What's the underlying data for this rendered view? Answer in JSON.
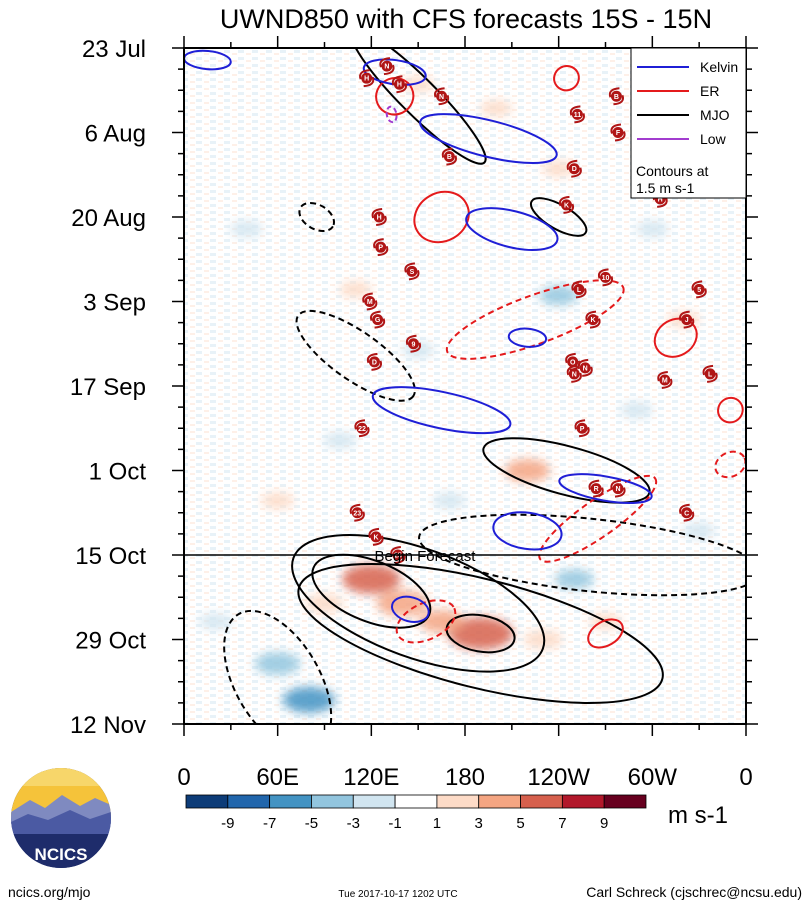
{
  "chart_data": {
    "type": "heatmap",
    "title": "UWND850 with CFS forecasts  15S - 15N",
    "x_axis": {
      "ticks": [
        {
          "lon": 0,
          "label": "0"
        },
        {
          "lon": 60,
          "label": "60E"
        },
        {
          "lon": 120,
          "label": "120E"
        },
        {
          "lon": 180,
          "label": "180"
        },
        {
          "lon": 240,
          "label": "120W"
        },
        {
          "lon": 300,
          "label": "60W"
        },
        {
          "lon": 360,
          "label": "0"
        }
      ],
      "range": [
        0,
        360
      ]
    },
    "y_axis": {
      "start_date": "23 Jul",
      "range_days": [
        0,
        112
      ],
      "ticks": [
        {
          "day": 0,
          "label": "23 Jul"
        },
        {
          "day": 14,
          "label": "6 Aug"
        },
        {
          "day": 28,
          "label": "20 Aug"
        },
        {
          "day": 42,
          "label": "3 Sep"
        },
        {
          "day": 56,
          "label": "17 Sep"
        },
        {
          "day": 70,
          "label": "1 Oct"
        },
        {
          "day": 84,
          "label": "15 Oct"
        },
        {
          "day": 98,
          "label": "29 Oct"
        },
        {
          "day": 112,
          "label": "12 Nov"
        }
      ]
    },
    "forecast_start": {
      "day": 84,
      "label": "Begin Forecast"
    },
    "legend": {
      "position": "top-right",
      "entries": [
        {
          "name": "Kelvin",
          "color": "#1f1fd6"
        },
        {
          "name": "ER",
          "color": "#e41a1c"
        },
        {
          "name": "MJO",
          "color": "#000000"
        },
        {
          "name": "Low",
          "color": "#a23ccf"
        }
      ],
      "note_line1": "Contours at",
      "note_line2": "1.5 m s-1"
    },
    "colorbar": {
      "unit": "m s-1",
      "labels": [
        "-9",
        "-7",
        "-5",
        "-3",
        "-1",
        "1",
        "3",
        "5",
        "7",
        "9"
      ],
      "colors": [
        "#0d3c78",
        "#2166ac",
        "#4393c3",
        "#92c5de",
        "#d1e5f0",
        "#ffffff",
        "#fddbc7",
        "#f4a582",
        "#d6604d",
        "#b2182b",
        "#67001f"
      ]
    },
    "wind_anomaly_blobs": [
      {
        "lon": 120,
        "day": 88,
        "value": 6
      },
      {
        "lon": 190,
        "day": 97,
        "value": 7
      },
      {
        "lon": 140,
        "day": 92,
        "value": 5
      },
      {
        "lon": 165,
        "day": 95,
        "value": 4
      },
      {
        "lon": 90,
        "day": 92,
        "value": 3
      },
      {
        "lon": 230,
        "day": 98,
        "value": 3
      },
      {
        "lon": 270,
        "day": 95,
        "value": 2
      },
      {
        "lon": 220,
        "day": 70,
        "value": 4
      },
      {
        "lon": 150,
        "day": 6,
        "value": 2
      },
      {
        "lon": 240,
        "day": 20,
        "value": 2
      },
      {
        "lon": 60,
        "day": 102,
        "value": -4
      },
      {
        "lon": 80,
        "day": 108,
        "value": -5
      },
      {
        "lon": 20,
        "day": 95,
        "value": -2
      },
      {
        "lon": 250,
        "day": 88,
        "value": -3
      },
      {
        "lon": 240,
        "day": 41,
        "value": -3
      },
      {
        "lon": 150,
        "day": 50,
        "value": -2
      },
      {
        "lon": 290,
        "day": 60,
        "value": -2
      },
      {
        "lon": 100,
        "day": 65,
        "value": -2
      },
      {
        "lon": 40,
        "day": 30,
        "value": -2
      },
      {
        "lon": 300,
        "day": 30,
        "value": -2
      },
      {
        "lon": 170,
        "day": 75,
        "value": -2
      },
      {
        "lon": 330,
        "day": 80,
        "value": -2
      },
      {
        "lon": 200,
        "day": 10,
        "value": 2
      },
      {
        "lon": 320,
        "day": 45,
        "value": 2
      },
      {
        "lon": 110,
        "day": 40,
        "value": 2
      },
      {
        "lon": 60,
        "day": 75,
        "value": 2
      }
    ],
    "kelvin_contours": [
      {
        "lon": 220,
        "day": 80,
        "rx": 22,
        "ry": 3,
        "angle": 8
      },
      {
        "lon": 165,
        "day": 60,
        "rx": 45,
        "ry": 3,
        "angle": 12
      },
      {
        "lon": 210,
        "day": 30,
        "rx": 30,
        "ry": 3,
        "angle": 14
      },
      {
        "lon": 195,
        "day": 15,
        "rx": 45,
        "ry": 3,
        "angle": 14
      },
      {
        "lon": 135,
        "day": 4,
        "rx": 20,
        "ry": 2,
        "angle": 8
      },
      {
        "lon": 15,
        "day": 2,
        "rx": 15,
        "ry": 1.5,
        "angle": 5
      },
      {
        "lon": 145,
        "day": 93,
        "rx": 12,
        "ry": 2,
        "angle": 15
      },
      {
        "lon": 270,
        "day": 73,
        "rx": 30,
        "ry": 2,
        "angle": 10
      },
      {
        "lon": 220,
        "day": 48,
        "rx": 12,
        "ry": 1.5,
        "angle": 5
      }
    ],
    "er_contours": [
      {
        "lon": 165,
        "day": 28,
        "rx": 18,
        "ry": 4,
        "angle": -30,
        "dashed": false
      },
      {
        "lon": 135,
        "day": 8,
        "rx": 12,
        "ry": 3,
        "angle": -25,
        "dashed": false
      },
      {
        "lon": 265,
        "day": 78,
        "rx": 45,
        "ry": 3,
        "angle": -35,
        "dashed": true
      },
      {
        "lon": 225,
        "day": 45,
        "rx": 60,
        "ry": 4,
        "angle": -20,
        "dashed": true
      },
      {
        "lon": 155,
        "day": 95,
        "rx": 20,
        "ry": 3,
        "angle": -25,
        "dashed": true
      },
      {
        "lon": 270,
        "day": 97,
        "rx": 12,
        "ry": 2,
        "angle": -30,
        "dashed": false
      },
      {
        "lon": 315,
        "day": 48,
        "rx": 14,
        "ry": 3,
        "angle": -30,
        "dashed": false
      },
      {
        "lon": 350,
        "day": 69,
        "rx": 10,
        "ry": 2,
        "angle": -25,
        "dashed": true
      },
      {
        "lon": 350,
        "day": 60,
        "rx": 8,
        "ry": 2,
        "angle": -40,
        "dashed": false
      },
      {
        "lon": 245,
        "day": 5,
        "rx": 8,
        "ry": 2,
        "angle": -30,
        "dashed": false
      }
    ],
    "mjo_contours": [
      {
        "lon": 190,
        "day": 97,
        "rx": 120,
        "ry": 9,
        "angle": 14,
        "dashed": false
      },
      {
        "lon": 150,
        "day": 92,
        "rx": 85,
        "ry": 9,
        "angle": 20,
        "dashed": false
      },
      {
        "lon": 120,
        "day": 90,
        "rx": 40,
        "ry": 5,
        "angle": 22,
        "dashed": false
      },
      {
        "lon": 190,
        "day": 97,
        "rx": 22,
        "ry": 3,
        "angle": 10,
        "dashed": false
      },
      {
        "lon": 245,
        "day": 70,
        "rx": 55,
        "ry": 4,
        "angle": 15,
        "dashed": false
      },
      {
        "lon": 150,
        "day": 8,
        "rx": 60,
        "ry": 3,
        "angle": 45,
        "dashed": false
      },
      {
        "lon": 240,
        "day": 28,
        "rx": 20,
        "ry": 2,
        "angle": 30,
        "dashed": false
      },
      {
        "lon": 60,
        "day": 105,
        "rx": 50,
        "ry": 7,
        "angle": 60,
        "dashed": true
      },
      {
        "lon": 110,
        "day": 51,
        "rx": 45,
        "ry": 4,
        "angle": 35,
        "dashed": true
      },
      {
        "lon": 260,
        "day": 84,
        "rx": 110,
        "ry": 6,
        "angle": 6,
        "dashed": true
      },
      {
        "lon": 85,
        "day": 28,
        "rx": 12,
        "ry": 2,
        "angle": 30,
        "dashed": true
      }
    ],
    "low_contours": [
      {
        "lon": 133,
        "day": 11,
        "rx": 5,
        "ry": 0.8,
        "angle": 80
      }
    ],
    "storm_markers": [
      {
        "lon": 130,
        "day": 3,
        "label": "N"
      },
      {
        "lon": 117,
        "day": 5,
        "label": "H"
      },
      {
        "lon": 138,
        "day": 6,
        "label": "H"
      },
      {
        "lon": 165,
        "day": 8,
        "label": "N"
      },
      {
        "lon": 170,
        "day": 18,
        "label": "B"
      },
      {
        "lon": 125,
        "day": 28,
        "label": "H"
      },
      {
        "lon": 126,
        "day": 33,
        "label": "P"
      },
      {
        "lon": 146,
        "day": 37,
        "label": "S"
      },
      {
        "lon": 119,
        "day": 42,
        "label": "M"
      },
      {
        "lon": 124,
        "day": 45,
        "label": "G"
      },
      {
        "lon": 147,
        "day": 49,
        "label": "9"
      },
      {
        "lon": 122,
        "day": 52,
        "label": "D"
      },
      {
        "lon": 114,
        "day": 63,
        "label": "22"
      },
      {
        "lon": 277,
        "day": 8,
        "label": "B"
      },
      {
        "lon": 252,
        "day": 11,
        "label": "11"
      },
      {
        "lon": 278,
        "day": 14,
        "label": "F"
      },
      {
        "lon": 250,
        "day": 20,
        "label": "D"
      },
      {
        "lon": 245,
        "day": 26,
        "label": "K"
      },
      {
        "lon": 305,
        "day": 25,
        "label": "H"
      },
      {
        "lon": 270,
        "day": 38,
        "label": "10"
      },
      {
        "lon": 253,
        "day": 40,
        "label": "L"
      },
      {
        "lon": 330,
        "day": 40,
        "label": "5"
      },
      {
        "lon": 262,
        "day": 45,
        "label": "K"
      },
      {
        "lon": 322,
        "day": 45,
        "label": "J"
      },
      {
        "lon": 249,
        "day": 52,
        "label": "O"
      },
      {
        "lon": 257,
        "day": 53,
        "label": "N"
      },
      {
        "lon": 250,
        "day": 54,
        "label": "N"
      },
      {
        "lon": 308,
        "day": 55,
        "label": "M"
      },
      {
        "lon": 337,
        "day": 54,
        "label": "L"
      },
      {
        "lon": 255,
        "day": 63,
        "label": "P"
      },
      {
        "lon": 264,
        "day": 73,
        "label": "R"
      },
      {
        "lon": 278,
        "day": 73,
        "label": "N"
      },
      {
        "lon": 322,
        "day": 77,
        "label": "C"
      },
      {
        "lon": 111,
        "day": 77,
        "label": "23"
      },
      {
        "lon": 123,
        "day": 81,
        "label": "K"
      },
      {
        "lon": 137,
        "day": 84,
        "label": "25"
      }
    ]
  },
  "footer": {
    "left_text": "ncics.org/mjo",
    "timestamp": "Tue 2017-10-17 1202 UTC",
    "author": "Carl Schreck (cjschrec@ncsu.edu)"
  },
  "logo": {
    "text": "NCICS"
  }
}
